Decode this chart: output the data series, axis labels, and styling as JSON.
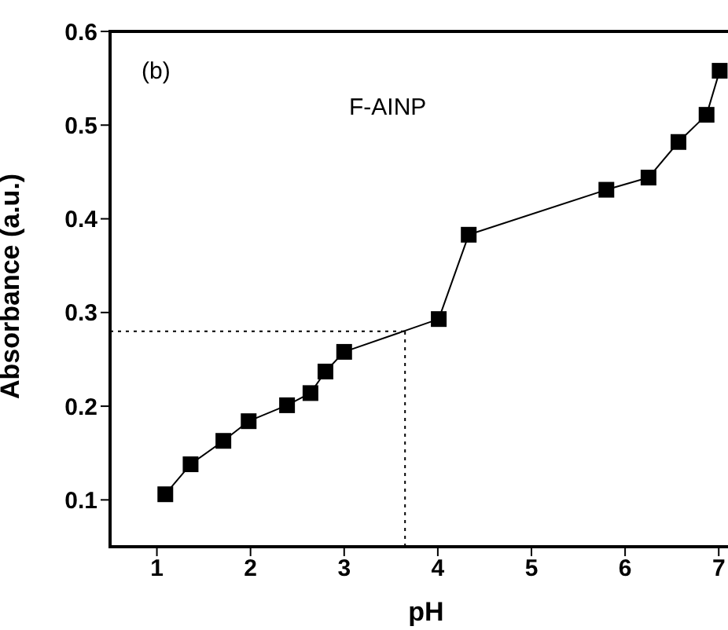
{
  "chart_data": {
    "type": "line",
    "xlabel": "pH",
    "ylabel": "Absorbance (a.u.)",
    "annotations": [
      "(b)",
      "F-AINP"
    ],
    "x": [
      1.09,
      1.36,
      1.71,
      1.98,
      2.39,
      2.64,
      2.8,
      3.0,
      4.01,
      4.33,
      5.8,
      6.25,
      6.57,
      6.87,
      7.01
    ],
    "series": [
      {
        "color": "#000000",
        "values": [
          0.106,
          0.138,
          0.163,
          0.184,
          0.201,
          0.214,
          0.237,
          0.258,
          0.293,
          0.383,
          0.431,
          0.444,
          0.482,
          0.511,
          0.558
        ]
      }
    ],
    "xlim": [
      0.5,
      7.25
    ],
    "xticks": [
      1,
      2,
      3,
      4,
      5,
      6,
      7
    ],
    "ylim": [
      0.05,
      0.6
    ],
    "yticks": [
      0.1,
      0.2,
      0.3,
      0.4,
      0.5,
      0.6
    ],
    "ref_lines": [
      {
        "axis": "x",
        "value": 3.65,
        "line_style": "dotted"
      },
      {
        "axis": "y",
        "value": 0.28,
        "line_style": "dotted"
      }
    ],
    "marker": "square",
    "grid": false
  }
}
